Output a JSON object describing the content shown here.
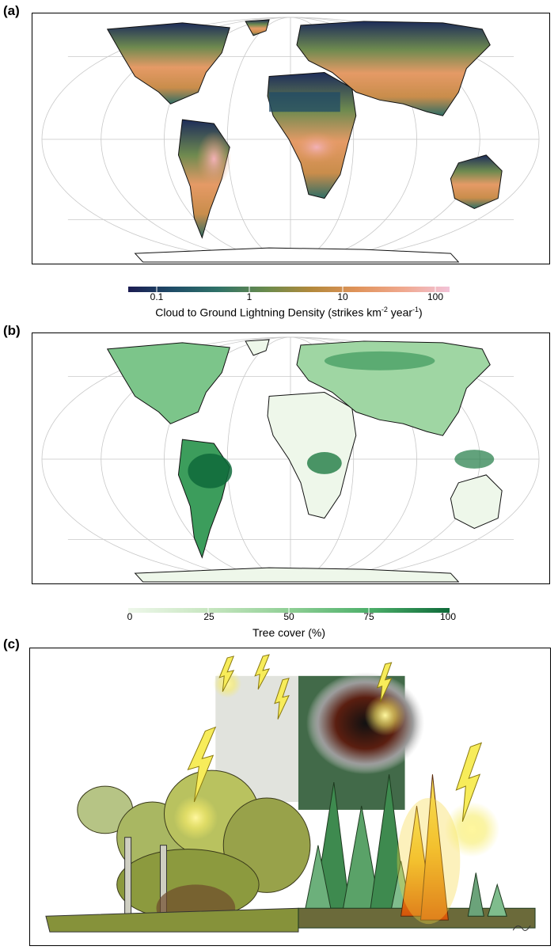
{
  "panels": {
    "a": {
      "label": "(a)",
      "colorbar": {
        "ticks": [
          "0.1",
          "1",
          "10",
          "100"
        ],
        "title_prefix": "Cloud to Ground Lightning Density (strikes km",
        "title_sup1": "-2",
        "title_mid": " year",
        "title_sup2": "-1",
        "title_suffix": ")",
        "colors": [
          "#1b1c52",
          "#1f4d68",
          "#2f7268",
          "#6a8b4c",
          "#b3893c",
          "#e0935a",
          "#f0a990",
          "#f2c3d8"
        ]
      }
    },
    "b": {
      "label": "(b)",
      "colorbar": {
        "ticks": [
          "0",
          "25",
          "50",
          "75",
          "100"
        ],
        "title": "Tree cover (%)",
        "colors": [
          "#eef7ea",
          "#c7e6c0",
          "#8fcf95",
          "#4daf6a",
          "#0e6a39"
        ]
      }
    },
    "c": {
      "label": "(c)"
    }
  }
}
